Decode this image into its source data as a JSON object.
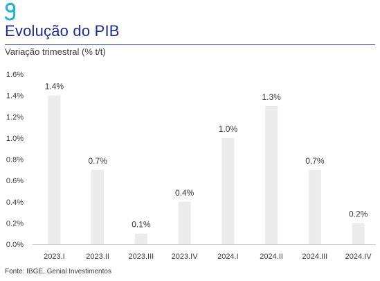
{
  "header": {
    "title": "Evolução do PIB",
    "subtitle": "Variação trimestral (% t/t)"
  },
  "footer": {
    "source": "Fonte: IBGE, Genial Investimentos"
  },
  "colors": {
    "bar": "#ececec",
    "title": "#1a2b9b",
    "rule": "#2b4ad0",
    "logo": "#1fb3d6",
    "text": "#3a3a3a"
  },
  "chart_data": {
    "type": "bar",
    "title": "Evolução do PIB",
    "subtitle": "Variação trimestral (% t/t)",
    "xlabel": "",
    "ylabel": "",
    "categories": [
      "2023.I",
      "2023.II",
      "2023.III",
      "2023.IV",
      "2024.I",
      "2024.II",
      "2024.III",
      "2024.IV"
    ],
    "values": [
      1.4,
      0.7,
      0.1,
      0.4,
      1.0,
      1.3,
      0.7,
      0.2
    ],
    "data_labels": [
      "1.4%",
      "0.7%",
      "0.1%",
      "0.4%",
      "1.0%",
      "1.3%",
      "0.7%",
      "0.2%"
    ],
    "ylim": [
      0,
      1.6
    ],
    "yticks": [
      0,
      0.2,
      0.4,
      0.6,
      0.8,
      1.0,
      1.2,
      1.4,
      1.6
    ],
    "ytick_labels": [
      "0.0%",
      "0.2%",
      "0.4%",
      "0.6%",
      "0.8%",
      "1.0%",
      "1.2%",
      "1.4%",
      "1.6%"
    ],
    "grid": false,
    "legend": "none"
  }
}
